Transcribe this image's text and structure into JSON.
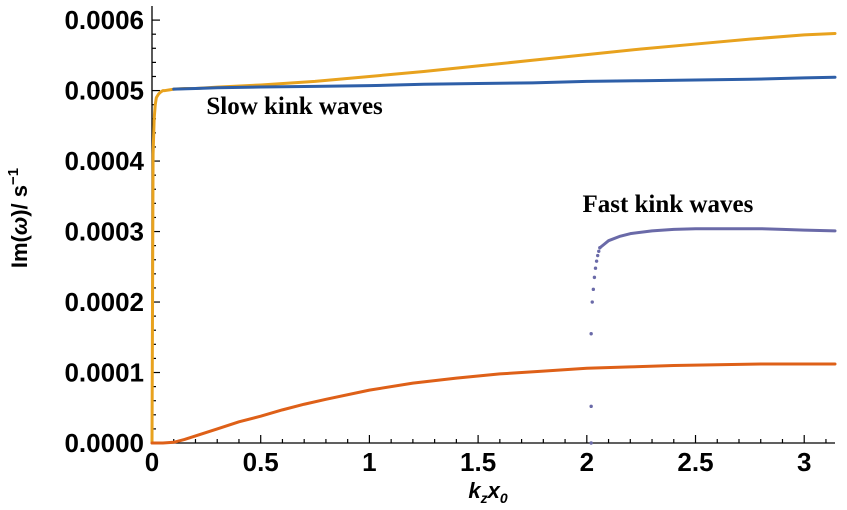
{
  "chart_data": {
    "type": "line",
    "title": "",
    "xlabel": {
      "base": "k",
      "sub1": "z",
      "mid": "x",
      "sub2": "0"
    },
    "ylabel": {
      "pre": "Im(",
      "greek": "ω",
      "post": ")/ s",
      "sup": "−1"
    },
    "xlim": [
      0,
      3.1416
    ],
    "ylim": [
      0,
      0.00062
    ],
    "x_ticks": [
      {
        "v": 0,
        "label": "0"
      },
      {
        "v": 0.5,
        "label": "0.5"
      },
      {
        "v": 1,
        "label": "1"
      },
      {
        "v": 1.5,
        "label": "1.5"
      },
      {
        "v": 2,
        "label": "2"
      },
      {
        "v": 2.5,
        "label": "2.5"
      },
      {
        "v": 3,
        "label": "3"
      }
    ],
    "y_ticks": [
      {
        "v": 0.0,
        "label": "0.0000"
      },
      {
        "v": 0.0001,
        "label": "0.0001"
      },
      {
        "v": 0.0002,
        "label": "0.0002"
      },
      {
        "v": 0.0003,
        "label": "0.0003"
      },
      {
        "v": 0.0004,
        "label": "0.0004"
      },
      {
        "v": 0.0005,
        "label": "0.0005"
      },
      {
        "v": 0.0006,
        "label": "0.0006"
      }
    ],
    "annotations": [
      {
        "text": "Slow kink waves",
        "x": 0.25,
        "y": 0.000467
      },
      {
        "text": "Fast kink waves",
        "x": 1.98,
        "y": 0.000328
      }
    ],
    "series": [
      {
        "color": "#E8A21E",
        "style": "line",
        "x": [
          0,
          0.005,
          0.01,
          0.015,
          0.02,
          0.03,
          0.04,
          0.05,
          0.06,
          0.08,
          0.1,
          0.15,
          0.2,
          0.3,
          0.5,
          0.75,
          1.0,
          1.25,
          1.5,
          1.75,
          2.0,
          2.25,
          2.5,
          2.75,
          3.0,
          3.1416
        ],
        "y": [
          0.0,
          0.00041,
          0.00046,
          0.00048,
          0.00049,
          0.000495,
          0.000498,
          0.0005,
          0.0005,
          0.000501,
          0.000502,
          0.000503,
          0.000503,
          0.000505,
          0.000508,
          0.000513,
          0.00052,
          0.000527,
          0.000535,
          0.000543,
          0.000551,
          0.000559,
          0.000566,
          0.000573,
          0.000579,
          0.000581
        ]
      },
      {
        "color": "#2E5FA8",
        "style": "line",
        "x": [
          0.1,
          0.2,
          0.3,
          0.5,
          0.75,
          1.0,
          1.25,
          1.5,
          1.75,
          2.0,
          2.25,
          2.5,
          2.75,
          3.0,
          3.1416
        ],
        "y": [
          0.000502,
          0.000503,
          0.000504,
          0.000505,
          0.000506,
          0.000507,
          0.000509,
          0.00051,
          0.000511,
          0.000513,
          0.000514,
          0.000515,
          0.000516,
          0.000518,
          0.000519
        ]
      },
      {
        "color": "#DE6018",
        "style": "line",
        "x": [
          0.0,
          0.05,
          0.1,
          0.15,
          0.2,
          0.3,
          0.4,
          0.5,
          0.6,
          0.7,
          0.8,
          1.0,
          1.2,
          1.4,
          1.6,
          1.8,
          2.0,
          2.2,
          2.4,
          2.6,
          2.8,
          3.0,
          3.1416
        ],
        "y": [
          0.0,
          0.0,
          1e-06,
          5e-06,
          1e-05,
          2e-05,
          3e-05,
          3.8e-05,
          4.7e-05,
          5.5e-05,
          6.2e-05,
          7.5e-05,
          8.5e-05,
          9.2e-05,
          9.8e-05,
          0.000102,
          0.000106,
          0.000108,
          0.00011,
          0.000111,
          0.000112,
          0.000112,
          0.000112
        ]
      },
      {
        "color": "#6A6AA8",
        "style": "dots",
        "x": [
          2.02,
          2.02,
          2.02,
          2.025,
          2.03,
          2.035,
          2.04,
          2.045,
          2.05,
          2.055,
          2.06
        ],
        "y": [
          0.0,
          5.2e-05,
          0.000155,
          0.0002,
          0.000218,
          0.000235,
          0.000248,
          0.000258,
          0.000266,
          0.000272,
          0.000277
        ]
      },
      {
        "color": "#6A6AA8",
        "style": "line",
        "x": [
          2.06,
          2.08,
          2.1,
          2.15,
          2.2,
          2.3,
          2.4,
          2.5,
          2.6,
          2.7,
          2.8,
          2.9,
          3.0,
          3.1416
        ],
        "y": [
          0.000277,
          0.000282,
          0.000287,
          0.000293,
          0.000297,
          0.000301,
          0.000303,
          0.000304,
          0.000304,
          0.000304,
          0.000304,
          0.000303,
          0.000302,
          0.000301
        ]
      }
    ]
  }
}
